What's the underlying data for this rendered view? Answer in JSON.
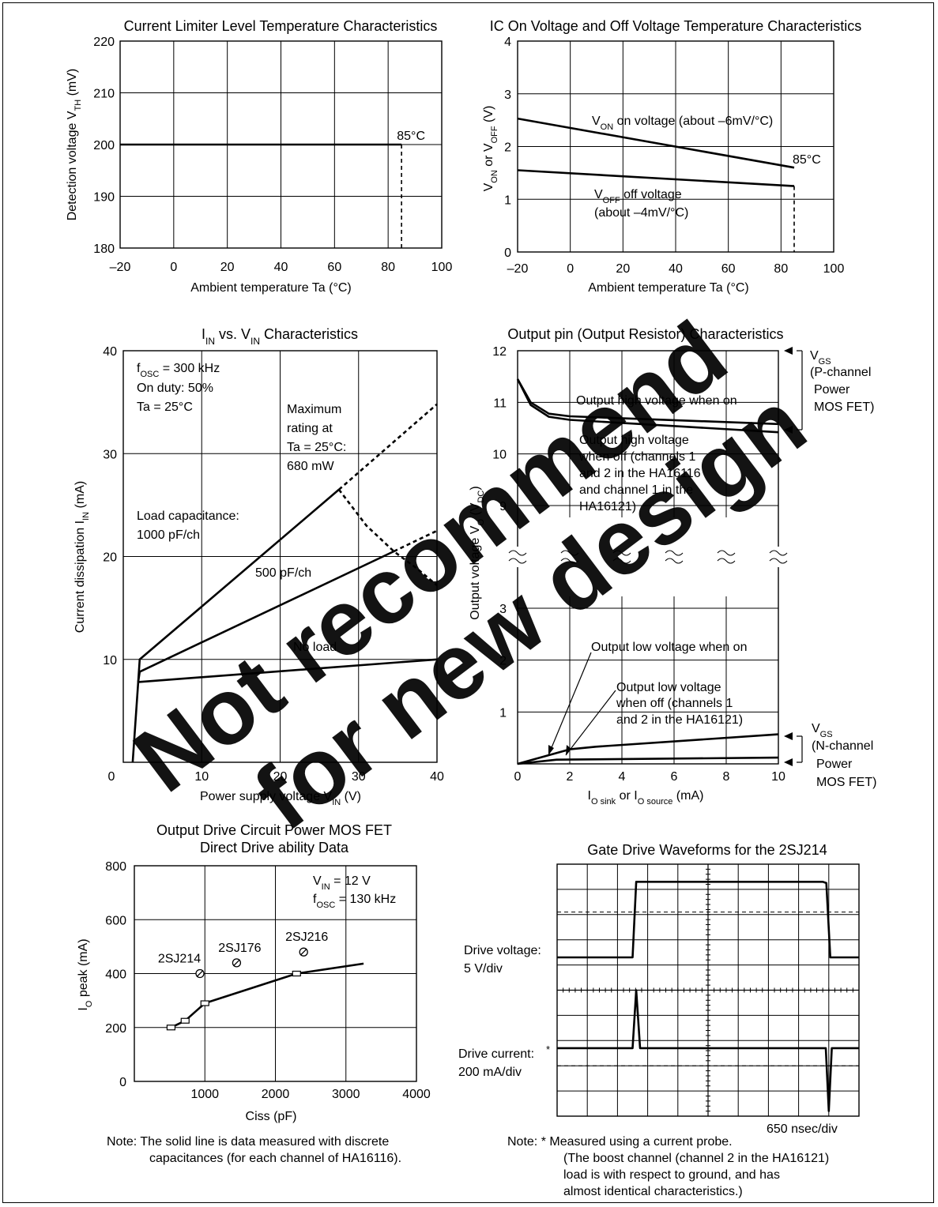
{
  "watermark": {
    "line1": "Not recommend",
    "line2": "for new design",
    "color": "#ff1f1f"
  },
  "chart_data": [
    {
      "id": "c1",
      "type": "line",
      "title": "Current Limiter Level Temperature Characteristics",
      "xlabel": "Ambient temperature Ta (°C)",
      "ylabel": "Detection voltage V_TH (mV)",
      "xlim": [
        -20,
        100
      ],
      "ylim": [
        180,
        220
      ],
      "x_ticks": [
        "–20",
        "0",
        "20",
        "40",
        "60",
        "80",
        "100"
      ],
      "y_ticks": [
        "180",
        "190",
        "200",
        "210",
        "220"
      ],
      "grid": true,
      "series": [
        {
          "values": [
            [
              -20,
              200
            ],
            [
              85,
              200
            ]
          ]
        }
      ],
      "annotations": [
        {
          "text": "85°C",
          "x": 85
        }
      ]
    },
    {
      "id": "c2",
      "type": "line",
      "title": "IC On Voltage and Off Voltage Temperature Characteristics",
      "xlabel": "Ambient temperature Ta (°C)",
      "ylabel": "V_ON or V_OFF (V)",
      "xlim": [
        -20,
        100
      ],
      "ylim": [
        0,
        4
      ],
      "x_ticks": [
        "–20",
        "0",
        "20",
        "40",
        "60",
        "80",
        "100"
      ],
      "y_ticks": [
        "0",
        "1",
        "2",
        "3",
        "4"
      ],
      "grid": true,
      "series": [
        {
          "name": "V_ON on voltage (about –6mV/°C)",
          "values": [
            [
              -20,
              2.53
            ],
            [
              85,
              1.6
            ]
          ]
        },
        {
          "name": "V_OFF off voltage (about –4mV/°C)",
          "values": [
            [
              -20,
              1.55
            ],
            [
              85,
              1.25
            ]
          ]
        }
      ],
      "annotations": [
        {
          "text": "85°C",
          "x": 85
        }
      ]
    },
    {
      "id": "c3",
      "type": "line",
      "title": "I_IN vs. V_IN Characteristics",
      "xlabel": "Power supply voltage V_IN (V)",
      "ylabel": "Current dissipation I_IN (mA)",
      "xlim": [
        0,
        40
      ],
      "ylim": [
        0,
        40
      ],
      "x_ticks": [
        "0",
        "10",
        "20",
        "30",
        "40"
      ],
      "y_ticks": [
        "10",
        "20",
        "30",
        "40"
      ],
      "grid": true,
      "conditions": [
        "f_OSC = 300 kHz",
        "On duty: 50%",
        "Ta = 25°C"
      ],
      "series": [
        {
          "name": "Load capacitance: 1000 pF/ch",
          "values": [
            [
              1.2,
              0
            ],
            [
              1.9,
              7.8
            ],
            [
              2.1,
              10
            ],
            [
              27.5,
              26.5
            ]
          ],
          "dashed_after": [
            [
              27.5,
              26.5
            ],
            [
              40,
              34.8
            ]
          ]
        },
        {
          "name": "500 pF/ch",
          "values": [
            [
              1.9,
              7.8
            ],
            [
              2.1,
              8.8
            ],
            [
              34.5,
              20.5
            ]
          ],
          "dashed_after": [
            [
              34.5,
              20.5
            ],
            [
              40,
              22.5
            ]
          ]
        },
        {
          "name": "No load",
          "values": [
            [
              1.9,
              7.8
            ],
            [
              40,
              10
            ]
          ]
        },
        {
          "name": "Maximum rating at Ta = 25°C: 680 mW",
          "dashed": true,
          "values": [
            [
              27.5,
              26.5
            ],
            [
              31,
              23
            ],
            [
              34.5,
              20.5
            ],
            [
              37.5,
              18.8
            ],
            [
              40,
              17.2
            ]
          ]
        }
      ],
      "labels": {
        "max_rating": "Maximum rating at Ta = 25°C: 680 mW",
        "load1000": "Load capacitance: 1000 pF/ch",
        "load500": "500 pF/ch",
        "noload": "No load"
      }
    },
    {
      "id": "c4",
      "type": "line",
      "title": "Output pin (Output Resistor) Characteristics",
      "xlabel": "I_O sink or I_O source (mA)",
      "ylabel": "Output voltage V_O (V_DC)",
      "xlim": [
        0,
        10
      ],
      "upper_ylim": [
        8.5,
        12
      ],
      "lower_ylim": [
        0,
        3.5
      ],
      "x_ticks": [
        "0",
        "2",
        "4",
        "6",
        "8",
        "10"
      ],
      "y_ticks_upper": [
        "9",
        "10",
        "11",
        "12"
      ],
      "y_ticks_lower": [
        "1",
        "2",
        "3"
      ],
      "grid": true,
      "series": [
        {
          "name": "Output high voltage when on",
          "values": [
            [
              0,
              11.45
            ],
            [
              0.5,
              11.0
            ],
            [
              1.2,
              10.78
            ],
            [
              2,
              10.73
            ],
            [
              10,
              10.58
            ]
          ]
        },
        {
          "name": "Output high voltage when off (channels 1 and 2 in the HA16116 and channel 1 in the HA16121)",
          "values": [
            [
              0,
              11.45
            ],
            [
              0.5,
              10.95
            ],
            [
              1.2,
              10.72
            ],
            [
              2,
              10.66
            ],
            [
              10,
              10.42
            ]
          ]
        },
        {
          "name": "Output low voltage when on",
          "values": [
            [
              0,
              0
            ],
            [
              2,
              0.28
            ],
            [
              3,
              0.33
            ],
            [
              10,
              0.57
            ]
          ]
        },
        {
          "name": "Output low voltage when off (channels 1 and 2 in the HA16121)",
          "values": [
            [
              0,
              0
            ],
            [
              1.5,
              0.08
            ],
            [
              10,
              0.12
            ]
          ]
        }
      ],
      "side_labels": {
        "vgs_top": "V_GS (P-channel Power MOS FET)",
        "vgs_bottom": "V_GS (N-channel Power MOS FET)"
      }
    },
    {
      "id": "c5",
      "type": "line",
      "title": "Output Drive Circuit Power MOS FET Direct Drive ability Data",
      "xlabel": "Ciss (pF)",
      "ylabel": "I_O peak (mA)",
      "xlim": [
        0,
        4000
      ],
      "ylim": [
        0,
        800
      ],
      "x_ticks": [
        "1000",
        "2000",
        "3000",
        "4000"
      ],
      "y_ticks": [
        "0",
        "200",
        "400",
        "600",
        "800"
      ],
      "grid": true,
      "conditions": [
        "V_IN = 12 V",
        "f_OSC = 130 kHz"
      ],
      "series": [
        {
          "name": "measured",
          "values": [
            [
              520,
              200
            ],
            [
              720,
              225
            ],
            [
              1000,
              290
            ],
            [
              2300,
              400
            ],
            [
              3250,
              437
            ]
          ],
          "markers": [
            [
              520,
              200
            ],
            [
              720,
              225
            ],
            [
              1000,
              290
            ],
            [
              2300,
              400
            ]
          ]
        }
      ],
      "points": [
        {
          "label": "2SJ214",
          "x": 930,
          "y": 400
        },
        {
          "label": "2SJ176",
          "x": 1450,
          "y": 440
        },
        {
          "label": "2SJ216",
          "x": 2400,
          "y": 480
        }
      ]
    },
    {
      "id": "c6",
      "type": "line",
      "title": "Gate Drive Waveforms for the 2SJ214",
      "time_scale": "650 nsec/div",
      "channels": [
        {
          "name": "Drive voltage:",
          "scale": "5 V/div"
        },
        {
          "name": "Drive current:",
          "scale": "200 mA/div",
          "mark": "*"
        }
      ]
    }
  ],
  "notes": {
    "left": [
      "Note:  The solid line is data measured with discrete",
      "capacitances (for each channel of HA16116)."
    ],
    "right": [
      "Note:  *  Measured using a current probe.",
      "(The boost channel (channel 2 in the HA16121)",
      "load is with respect to ground, and has",
      "almost identical characteristics.)"
    ]
  }
}
